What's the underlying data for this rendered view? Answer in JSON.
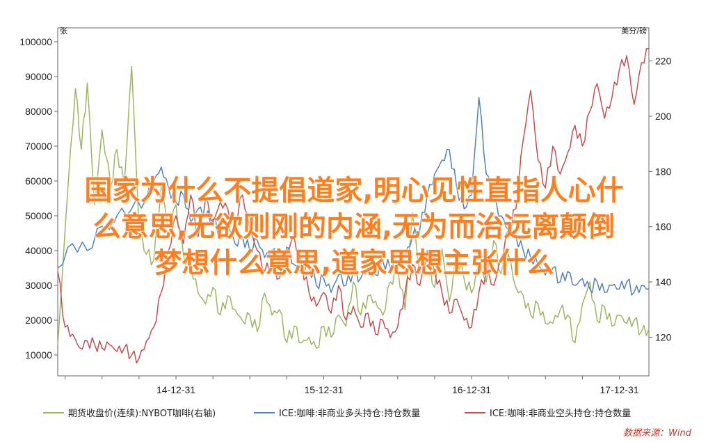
{
  "chart_data": {
    "type": "line",
    "left_axis": {
      "unit": "张",
      "ticks": [
        "100000",
        "90000",
        "80000",
        "70000",
        "60000",
        "50000",
        "40000",
        "30000",
        "20000",
        "10000"
      ],
      "tick_values": [
        100000,
        90000,
        80000,
        70000,
        60000,
        50000,
        40000,
        30000,
        20000,
        10000
      ],
      "range": [
        4000,
        104000
      ]
    },
    "right_axis": {
      "unit": "美分/磅",
      "ticks": [
        "220",
        "200",
        "180",
        "160",
        "140",
        "120"
      ],
      "tick_values": [
        220,
        200,
        180,
        160,
        140,
        120
      ],
      "range": [
        106,
        232
      ]
    },
    "x_axis": {
      "ticks": [
        "14-12-31",
        "15-12-31",
        "16-12-31",
        "17-12-31"
      ],
      "tick_positions": [
        2014.0,
        2015.0,
        2016.0,
        2017.0
      ],
      "range": [
        2013.2,
        2017.2
      ]
    },
    "series": [
      {
        "name": "期货收盘价(连续):NYBOT咖啡(右轴)",
        "axis": "right",
        "color": "#9bb661",
        "x": [
          2013.2,
          2013.27,
          2013.32,
          2013.36,
          2013.4,
          2013.45,
          2013.5,
          2013.56,
          2013.6,
          2013.65,
          2013.7,
          2013.75,
          2013.8,
          2013.85,
          2013.9,
          2013.95,
          2014.0,
          2014.05,
          2014.1,
          2014.15,
          2014.2,
          2014.25,
          2014.3,
          2014.35,
          2014.4,
          2014.45,
          2014.5,
          2014.55,
          2014.6,
          2014.65,
          2014.7,
          2014.75,
          2014.8,
          2014.85,
          2014.9,
          2014.95,
          2015.0,
          2015.05,
          2015.1,
          2015.15,
          2015.2,
          2015.25,
          2015.3,
          2015.35,
          2015.4,
          2015.45,
          2015.5,
          2015.55,
          2015.6,
          2015.65,
          2015.7,
          2015.75,
          2015.8,
          2015.85,
          2015.9,
          2015.95,
          2016.0,
          2016.05,
          2016.1,
          2016.15,
          2016.2,
          2016.25,
          2016.3,
          2016.35,
          2016.4,
          2016.45,
          2016.5,
          2016.55,
          2016.6,
          2016.65,
          2016.7,
          2016.75,
          2016.8,
          2016.85,
          2016.9,
          2016.95,
          2017.0,
          2017.05,
          2017.1,
          2017.15,
          2017.2
        ],
        "values": [
          117,
          175,
          210,
          188,
          212,
          168,
          195,
          175,
          188,
          175,
          218,
          160,
          150,
          148,
          175,
          160,
          168,
          150,
          146,
          136,
          132,
          138,
          128,
          135,
          130,
          126,
          128,
          122,
          136,
          128,
          130,
          118,
          124,
          118,
          120,
          116,
          124,
          120,
          128,
          124,
          140,
          128,
          135,
          133,
          128,
          140,
          145,
          130,
          165,
          143,
          150,
          138,
          152,
          133,
          150,
          141,
          136,
          146,
          140,
          155,
          143,
          150,
          138,
          135,
          128,
          132,
          125,
          125,
          130,
          128,
          118,
          132,
          140,
          126,
          131,
          124,
          128,
          125,
          126,
          122,
          123
        ]
      },
      {
        "name": "ICE:咖啡:非商业多头持仓:持仓数量",
        "axis": "left",
        "color": "#4f81bd",
        "x": [
          2013.2,
          2013.3,
          2013.4,
          2013.5,
          2013.55,
          2013.6,
          2013.7,
          2013.8,
          2013.85,
          2013.9,
          2013.95,
          2014.0,
          2014.05,
          2014.1,
          2014.15,
          2014.2,
          2014.25,
          2014.3,
          2014.35,
          2014.4,
          2014.45,
          2014.5,
          2014.55,
          2014.6,
          2014.65,
          2014.7,
          2014.75,
          2014.8,
          2014.85,
          2014.9,
          2014.95,
          2015.0,
          2015.05,
          2015.1,
          2015.15,
          2015.2,
          2015.25,
          2015.3,
          2015.35,
          2015.4,
          2015.45,
          2015.5,
          2015.55,
          2015.6,
          2015.65,
          2015.7,
          2015.75,
          2015.8,
          2015.85,
          2015.9,
          2015.95,
          2016.0,
          2016.05,
          2016.1,
          2016.15,
          2016.2,
          2016.25,
          2016.3,
          2016.35,
          2016.4,
          2016.45,
          2016.5,
          2016.55,
          2016.6,
          2016.65,
          2016.7,
          2016.75,
          2016.8,
          2016.85,
          2016.9,
          2016.95,
          2017.0,
          2017.05,
          2017.1,
          2017.15,
          2017.2
        ],
        "values": [
          35000,
          42000,
          40000,
          47000,
          46000,
          50000,
          52000,
          55000,
          60000,
          64000,
          58000,
          54000,
          56000,
          48000,
          52000,
          50000,
          49000,
          45000,
          48000,
          42000,
          44000,
          40000,
          43000,
          38000,
          40000,
          37000,
          41000,
          36000,
          34000,
          36000,
          30000,
          32000,
          28000,
          33000,
          30000,
          34000,
          32000,
          35000,
          33000,
          37000,
          35000,
          40000,
          38000,
          44000,
          46000,
          56000,
          62000,
          66000,
          69000,
          58000,
          52000,
          56000,
          84000,
          62000,
          54000,
          50000,
          46000,
          44000,
          40000,
          38000,
          36000,
          33000,
          35000,
          31000,
          34000,
          30000,
          32000,
          29000,
          31000,
          28000,
          30000,
          29000,
          31000,
          28000,
          30000,
          29000
        ]
      },
      {
        "name": "ICE:咖啡:非商业空头持仓:持仓数量",
        "axis": "left",
        "color": "#c0504d",
        "x": [
          2013.2,
          2013.25,
          2013.3,
          2013.35,
          2013.4,
          2013.45,
          2013.5,
          2013.55,
          2013.6,
          2013.65,
          2013.7,
          2013.75,
          2013.8,
          2013.85,
          2013.9,
          2013.95,
          2014.0,
          2014.05,
          2014.1,
          2014.15,
          2014.2,
          2014.25,
          2014.3,
          2014.35,
          2014.4,
          2014.45,
          2014.5,
          2014.55,
          2014.6,
          2014.65,
          2014.7,
          2014.75,
          2014.8,
          2014.85,
          2014.9,
          2014.95,
          2015.0,
          2015.05,
          2015.1,
          2015.15,
          2015.2,
          2015.25,
          2015.3,
          2015.35,
          2015.4,
          2015.45,
          2015.5,
          2015.55,
          2015.6,
          2015.65,
          2015.7,
          2015.75,
          2015.8,
          2015.85,
          2015.9,
          2015.95,
          2016.0,
          2016.05,
          2016.1,
          2016.15,
          2016.2,
          2016.25,
          2016.3,
          2016.35,
          2016.4,
          2016.45,
          2016.5,
          2016.55,
          2016.6,
          2016.65,
          2016.7,
          2016.75,
          2016.8,
          2016.85,
          2016.9,
          2016.95,
          2017.0,
          2017.05,
          2017.1,
          2017.15,
          2017.2
        ],
        "values": [
          34000,
          18000,
          16000,
          12000,
          14000,
          13000,
          12000,
          13000,
          11000,
          12000,
          10000,
          9000,
          14000,
          18000,
          28000,
          40000,
          50000,
          42000,
          56000,
          44000,
          55000,
          48000,
          54000,
          52000,
          48000,
          56000,
          46000,
          40000,
          34000,
          36000,
          32000,
          40000,
          44000,
          36000,
          28000,
          24000,
          28000,
          22000,
          30000,
          20000,
          24000,
          18000,
          22000,
          16000,
          20000,
          15000,
          18000,
          28000,
          36000,
          30000,
          40000,
          34000,
          28000,
          22000,
          26000,
          20000,
          18000,
          28000,
          34000,
          30000,
          38000,
          46000,
          52000,
          72000,
          86000,
          66000,
          58000,
          70000,
          62000,
          68000,
          76000,
          70000,
          80000,
          88000,
          78000,
          84000,
          92000,
          96000,
          82000,
          94000,
          98000
        ]
      }
    ]
  },
  "overlay": {
    "lines": [
      "国家为什么不提倡道家,明心见性直指人心什",
      "么意思,无欲则刚的内涵,无为而治远离颠倒",
      "梦想什么意思,道家思想主张什么"
    ]
  },
  "source": "数据来源：Wind"
}
